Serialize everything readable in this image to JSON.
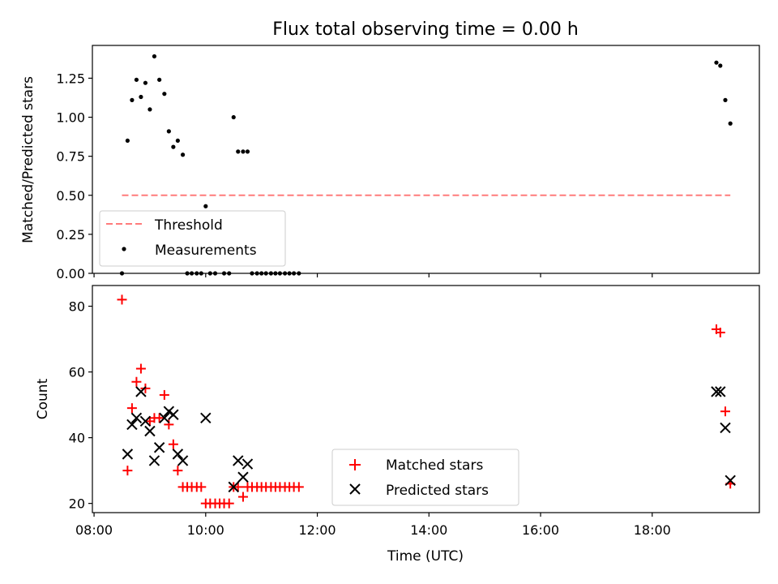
{
  "title": "Flux total observing time = 0.00 h",
  "chart_data": [
    {
      "type": "scatter",
      "panel": "top",
      "ylabel": "Matched/Predicted stars",
      "ylim": [
        0,
        1.46
      ],
      "yticks": [
        0.0,
        0.25,
        0.5,
        0.75,
        1.0,
        1.25
      ],
      "ytick_labels": [
        "0.00",
        "0.25",
        "0.50",
        "0.75",
        "1.00",
        "1.25"
      ],
      "legend_position": "lower-left",
      "threshold": {
        "name": "Threshold",
        "value": 0.5,
        "x_range": [
          8.5,
          19.4
        ],
        "color": "#ff7b7b"
      },
      "series": [
        {
          "name": "Measurements",
          "color": "#000000",
          "marker": "dot",
          "x": [
            8.5,
            8.6,
            8.68,
            8.76,
            8.84,
            8.92,
            9.0,
            9.08,
            9.17,
            9.26,
            9.34,
            9.42,
            9.5,
            9.59,
            9.67,
            9.75,
            9.84,
            9.92,
            10.0,
            10.08,
            10.17,
            10.33,
            10.42,
            10.5,
            10.58,
            10.67,
            10.75,
            10.83,
            10.92,
            11.0,
            11.08,
            11.17,
            11.25,
            11.33,
            11.42,
            11.5,
            11.58,
            11.67,
            19.15,
            19.22,
            19.31,
            19.4
          ],
          "y": [
            0.0,
            0.85,
            1.11,
            1.24,
            1.13,
            1.22,
            1.05,
            1.39,
            1.24,
            1.15,
            0.91,
            0.81,
            0.85,
            0.76,
            0.0,
            0.0,
            0.0,
            0.0,
            0.43,
            0.0,
            0.0,
            0.0,
            0.0,
            1.0,
            0.78,
            0.78,
            0.78,
            0.0,
            0.0,
            0.0,
            0.0,
            0.0,
            0.0,
            0.0,
            0.0,
            0.0,
            0.0,
            0.0,
            1.35,
            1.33,
            1.11,
            0.96
          ]
        }
      ]
    },
    {
      "type": "scatter",
      "panel": "bottom",
      "ylabel": "Count",
      "xlabel": "Time (UTC)",
      "xlim": [
        7.97,
        19.92
      ],
      "ylim": [
        17.2,
        86.3
      ],
      "yticks": [
        20,
        40,
        60,
        80
      ],
      "ytick_labels": [
        "20",
        "40",
        "60",
        "80"
      ],
      "xticks": [
        8,
        10,
        12,
        14,
        16,
        18
      ],
      "xtick_labels": [
        "08:00",
        "10:00",
        "12:00",
        "14:00",
        "16:00",
        "18:00"
      ],
      "legend_position": "lower-center",
      "series": [
        {
          "name": "Matched stars",
          "color": "#ff0000",
          "marker": "plus",
          "x": [
            8.5,
            8.6,
            8.68,
            8.76,
            8.84,
            8.92,
            9.0,
            9.08,
            9.17,
            9.26,
            9.34,
            9.42,
            9.5,
            9.59,
            9.67,
            9.75,
            9.84,
            9.92,
            10.0,
            10.08,
            10.17,
            10.25,
            10.33,
            10.42,
            10.5,
            10.58,
            10.67,
            10.75,
            10.83,
            10.92,
            11.0,
            11.08,
            11.17,
            11.25,
            11.33,
            11.42,
            11.5,
            11.58,
            11.67,
            19.15,
            19.22,
            19.31,
            19.4
          ],
          "y": [
            82,
            30,
            49,
            57,
            61,
            55,
            45,
            46,
            46,
            53,
            44,
            38,
            30,
            25,
            25,
            25,
            25,
            25,
            20,
            20,
            20,
            20,
            20,
            20,
            25,
            25,
            22,
            25,
            25,
            25,
            25,
            25,
            25,
            25,
            25,
            25,
            25,
            25,
            25,
            73,
            72,
            48,
            26
          ]
        },
        {
          "name": "Predicted stars",
          "color": "#000000",
          "marker": "x",
          "x": [
            8.6,
            8.68,
            8.76,
            8.84,
            8.92,
            9.0,
            9.08,
            9.17,
            9.26,
            9.34,
            9.42,
            9.5,
            9.59,
            10.0,
            10.5,
            10.58,
            10.67,
            10.75,
            19.15,
            19.22,
            19.31,
            19.4
          ],
          "y": [
            35,
            44,
            46,
            54,
            45,
            42,
            33,
            37,
            46,
            48,
            47,
            35,
            33,
            46,
            25,
            33,
            28,
            32,
            54,
            54,
            43,
            27
          ]
        }
      ]
    }
  ]
}
